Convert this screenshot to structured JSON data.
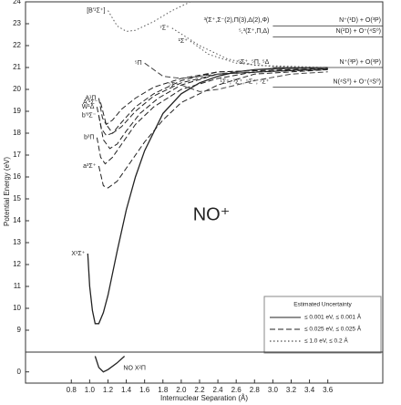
{
  "chart_data": [
    {
      "type": "line",
      "annotation": "NO⁺",
      "y_label": "Potential Energy (eV)",
      "xlim": [
        0.3,
        4.2
      ],
      "ylim": [
        8,
        24
      ],
      "yticks": [
        9,
        10,
        11,
        12,
        13,
        14,
        15,
        16,
        17,
        18,
        19,
        20,
        21,
        22,
        23,
        24
      ],
      "series": [
        {
          "name": "X¹Σ⁺",
          "style": "solid",
          "color": "#222222",
          "x": [
            0.98,
            1.0,
            1.03,
            1.06,
            1.1,
            1.15,
            1.2,
            1.3,
            1.4,
            1.5,
            1.6,
            1.8,
            2.0,
            2.2,
            2.4,
            2.6,
            2.8,
            3.0,
            3.6
          ],
          "values": [
            12.5,
            11.0,
            9.9,
            9.3,
            9.3,
            9.8,
            10.6,
            12.6,
            14.5,
            16.0,
            17.2,
            18.9,
            19.8,
            20.3,
            20.6,
            20.8,
            20.9,
            20.95,
            21.0
          ]
        },
        {
          "name": "a³Σ⁺",
          "style": "dashed",
          "color": "#222222",
          "x": [
            1.1,
            1.15,
            1.2,
            1.3,
            1.4,
            1.6,
            1.8,
            2.0,
            2.4,
            2.8,
            3.6
          ],
          "values": [
            16.5,
            15.6,
            15.5,
            15.8,
            16.4,
            17.6,
            18.6,
            19.4,
            20.2,
            20.7,
            20.9
          ]
        },
        {
          "name": "b³Π",
          "style": "dashed",
          "color": "#222222",
          "x": [
            1.08,
            1.12,
            1.17,
            1.25,
            1.35,
            1.5,
            1.7,
            2.0,
            2.4,
            2.8,
            3.6
          ],
          "values": [
            17.8,
            16.9,
            16.6,
            16.9,
            17.5,
            18.4,
            19.2,
            20.0,
            20.5,
            20.8,
            20.9
          ]
        },
        {
          "name": "b'³Σ⁻",
          "style": "dashed",
          "color": "#222222",
          "x": [
            1.1,
            1.15,
            1.22,
            1.3,
            1.4,
            1.55,
            1.75,
            2.0,
            2.4,
            3.6
          ],
          "values": [
            18.8,
            17.7,
            17.3,
            17.5,
            18.1,
            18.9,
            19.6,
            20.2,
            20.7,
            20.95
          ]
        },
        {
          "name": "W¹Δ",
          "style": "dashed",
          "color": "#222222",
          "x": [
            1.08,
            1.13,
            1.18,
            1.25,
            1.35,
            1.5,
            1.7,
            2.0,
            2.4,
            3.6
          ],
          "values": [
            19.2,
            18.2,
            17.9,
            18.0,
            18.5,
            19.2,
            19.8,
            20.4,
            20.8,
            20.95
          ]
        },
        {
          "name": "A'¹Σ⁻",
          "style": "dashed",
          "color": "#222222",
          "x": [
            1.12,
            1.18,
            1.25,
            1.35,
            1.5,
            1.7,
            2.0,
            2.4,
            3.6
          ],
          "values": [
            19.4,
            18.4,
            18.0,
            18.3,
            19.0,
            19.7,
            20.3,
            20.7,
            20.95
          ]
        },
        {
          "name": "A¹Π",
          "style": "dashed",
          "color": "#222222",
          "x": [
            1.1,
            1.14,
            1.18,
            1.25,
            1.35,
            1.5,
            1.7,
            2.0,
            2.4,
            3.6
          ],
          "values": [
            19.6,
            18.7,
            18.4,
            18.6,
            19.1,
            19.6,
            20.1,
            20.5,
            20.8,
            20.95
          ]
        },
        {
          "name": "⁵Π",
          "style": "dashed",
          "color": "#444444",
          "x": [
            1.6,
            1.8,
            2.0,
            2.4,
            2.8,
            3.6
          ],
          "values": [
            21.2,
            20.6,
            20.5,
            20.7,
            20.9,
            21.0
          ]
        },
        {
          "name": "⁵Σ⁺",
          "style": "dashed",
          "color": "#444444",
          "x": [
            2.0,
            2.2,
            2.4,
            2.8,
            3.2,
            3.6
          ],
          "values": [
            20.2,
            19.9,
            20.0,
            20.4,
            20.7,
            20.8
          ]
        },
        {
          "name": "⁷Σ⁺",
          "style": "dotted",
          "color": "#555555",
          "x": [
            1.9,
            2.2,
            2.5,
            2.8,
            3.6
          ],
          "values": [
            22.8,
            22.0,
            21.4,
            21.1,
            21.0
          ]
        },
        {
          "name": "¹Σ⁺",
          "style": "dotted",
          "color": "#555555",
          "x": [
            2.1,
            2.3,
            2.6,
            3.0,
            3.6
          ],
          "values": [
            22.2,
            21.6,
            21.2,
            21.05,
            21.0
          ]
        },
        {
          "name": "[B'¹Σ⁺]",
          "style": "dotted",
          "color": "#555555",
          "x": [
            1.2,
            1.3,
            1.4,
            1.5,
            1.7,
            1.9,
            2.1
          ],
          "values": [
            23.6,
            22.9,
            22.65,
            22.7,
            23.1,
            23.6,
            24.0
          ]
        }
      ],
      "asymptotes": [
        {
          "label": "N⁺(¹D) + O(³P)",
          "states": "³(Σ⁺,Σ⁻(2),Π(3),Δ(2),Φ)",
          "value": 22.9
        },
        {
          "label": "N(²D) + O⁺(⁴S⁰)",
          "states": "⁵,³(Σ⁺,Π,Δ)",
          "value": 22.4
        },
        {
          "label": "N⁺(³P) + O(³P)",
          "states": "⁵Σ⁺, ⁵Π, ⁵Δ",
          "value": 21.0
        },
        {
          "label": "N(⁴S⁰) + O⁺(⁴S⁰)",
          "states": "¹Σ⁺, ³Σ⁺, ⁵Σ⁺, ⁷Σ⁺",
          "value": 20.1
        }
      ],
      "legend": {
        "title": "Estimated Uncertainty",
        "items": [
          {
            "label": "≤ 0.001 eV, ≤ 0.001 Å",
            "style": "solid"
          },
          {
            "label": "≤ 0.025 eV, ≤ 0.025 Å",
            "style": "dashed"
          },
          {
            "label": "≤ 1.0 eV, ≤ 0.2 Å",
            "style": "dotted"
          }
        ]
      }
    },
    {
      "type": "line",
      "x_label": "Internuclear Separation (Å)",
      "xlim": [
        0.3,
        4.2
      ],
      "ylim": [
        -0.5,
        0.8
      ],
      "yticks": [
        0
      ],
      "xticks": [
        0.8,
        {
          "value": 1.0,
          "label": "1.0"
        },
        1.2,
        1.4,
        1.6,
        1.8,
        {
          "value": 2.0,
          "label": "2.0"
        },
        2.2,
        2.4,
        2.6,
        2.8,
        {
          "value": 3.0,
          "label": "3.0"
        },
        3.2,
        3.4,
        3.6
      ],
      "series": [
        {
          "name": "NO X²Π",
          "style": "solid",
          "color": "#222222",
          "x": [
            1.06,
            1.1,
            1.15,
            1.2,
            1.3,
            1.38
          ],
          "values": [
            0.7,
            0.2,
            0.0,
            0.1,
            0.4,
            0.7
          ]
        }
      ]
    }
  ]
}
